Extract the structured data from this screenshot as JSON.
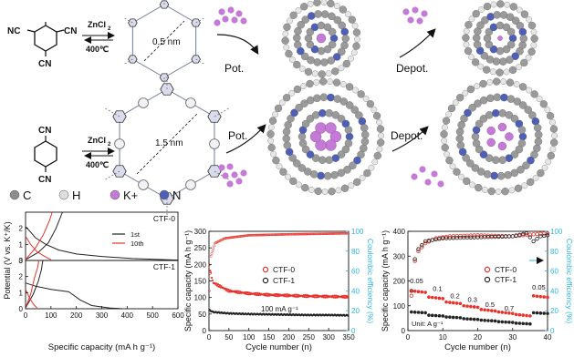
{
  "schematic": {
    "reagent": "ZnCl",
    "reagent_sub": "2",
    "temp": "400℃",
    "cn": "CN",
    "nc": "NC",
    "pore_small": "0.5 nm",
    "pore_large": "1.5 nm",
    "pot": "Pot.",
    "depot": "Depot.",
    "colors": {
      "C": "#9a9a9a",
      "H": "#e6e6e6",
      "K": "#c47bd6",
      "N": "#4d5fb8",
      "frame": "#6f7a99"
    }
  },
  "legend": {
    "items": [
      {
        "symbol": "C",
        "color": "#8c8c8c"
      },
      {
        "symbol": "H",
        "color": "#dedede"
      },
      {
        "symbol": "K+",
        "color": "#c47bd6"
      },
      {
        "symbol": "N",
        "color": "#4d5fb8"
      }
    ]
  },
  "chart_data": [
    {
      "type": "line",
      "xlabel": "Specific capacity (mA h g⁻¹)",
      "ylabel": "Potential (V vs. K⁺/K)",
      "xlim": [
        0,
        600
      ],
      "xticks": [
        "0",
        "100",
        "200",
        "300",
        "400",
        "500",
        "600"
      ],
      "yticks_top": [
        "0",
        "1",
        "2"
      ],
      "yticks_bottom": [
        "0",
        "1",
        "2",
        "3"
      ],
      "panels": [
        {
          "label": "CTF-0",
          "ylim": [
            0,
            3
          ],
          "series": [
            {
              "name": "1st",
              "color": "#222222",
              "discharge": [
                [
                  0,
                  2.1
                ],
                [
                  15,
                  1.85
                ],
                [
                  40,
                  1.4
                ],
                [
                  80,
                  1.0
                ],
                [
                  130,
                  0.65
                ],
                [
                  200,
                  0.4
                ],
                [
                  300,
                  0.25
                ],
                [
                  420,
                  0.12
                ],
                [
                  600,
                  0.02
                ]
              ],
              "charge": [
                [
                  0,
                  0.05
                ],
                [
                  50,
                  0.5
                ],
                [
                  90,
                  1.1
                ],
                [
                  120,
                  2.0
                ],
                [
                  145,
                  3.0
                ]
              ]
            },
            {
              "name": "10th",
              "color": "#e8312a",
              "discharge": [
                [
                  0,
                  1.5
                ],
                [
                  20,
                  1.0
                ],
                [
                  45,
                  0.55
                ],
                [
                  75,
                  0.25
                ],
                [
                  100,
                  0.05
                ]
              ],
              "charge": [
                [
                  0,
                  0.05
                ],
                [
                  40,
                  0.8
                ],
                [
                  70,
                  1.6
                ],
                [
                  95,
                  2.5
                ],
                [
                  105,
                  3.0
                ]
              ]
            }
          ]
        },
        {
          "label": "CTF-1",
          "ylim": [
            0,
            3
          ],
          "series": [
            {
              "name": "1st",
              "color": "#222222",
              "discharge": [
                [
                  0,
                  1.6
                ],
                [
                  40,
                  1.4
                ],
                [
                  100,
                  1.2
                ],
                [
                  170,
                  1.05
                ],
                [
                  215,
                  0.55
                ],
                [
                  260,
                  0.2
                ],
                [
                  330,
                  0.05
                ],
                [
                  380,
                  0.0
                ]
              ],
              "charge": [
                [
                  0,
                  0.05
                ],
                [
                  30,
                  0.9
                ],
                [
                  50,
                  1.7
                ],
                [
                  62,
                  2.4
                ],
                [
                  68,
                  3.0
                ]
              ]
            },
            {
              "name": "10th",
              "color": "#e8312a",
              "discharge": [
                [
                  0,
                  1.2
                ],
                [
                  15,
                  0.7
                ],
                [
                  30,
                  0.3
                ],
                [
                  45,
                  0.05
                ]
              ],
              "charge": [
                [
                  0,
                  0.05
                ],
                [
                  20,
                  0.9
                ],
                [
                  35,
                  1.9
                ],
                [
                  48,
                  2.6
                ],
                [
                  52,
                  3.0
                ]
              ]
            }
          ]
        }
      ],
      "legend": [
        "1st",
        "10th"
      ]
    },
    {
      "type": "scatter",
      "xlabel": "Cycle number (n)",
      "ylabel": "Specific capacity (mA h g⁻¹)",
      "ylabel_right": "Coulombic efficiency (%)",
      "xlim": [
        0,
        350
      ],
      "ylim": [
        0,
        300
      ],
      "ylim_right": [
        0,
        100
      ],
      "xticks": [
        "0",
        "50",
        "100",
        "150",
        "200",
        "250",
        "300",
        "350"
      ],
      "yticks": [
        "0",
        "50",
        "100",
        "150",
        "200",
        "250",
        "300"
      ],
      "yticks_right": [
        "0",
        "20",
        "40",
        "60",
        "80",
        "100"
      ],
      "series": [
        {
          "name": "CTF-0",
          "color": "#e8312a"
        },
        {
          "name": "CTF-1",
          "color": "#222222"
        }
      ],
      "annotation": "100 mA g⁻¹",
      "ctf0_capacity": [
        [
          1,
          195
        ],
        [
          10,
          145
        ],
        [
          50,
          120
        ],
        [
          100,
          112
        ],
        [
          150,
          108
        ],
        [
          200,
          106
        ],
        [
          250,
          104
        ],
        [
          300,
          103
        ],
        [
          350,
          102
        ]
      ],
      "ctf1_capacity": [
        [
          1,
          62
        ],
        [
          10,
          56
        ],
        [
          50,
          52
        ],
        [
          100,
          50
        ],
        [
          150,
          49
        ],
        [
          200,
          48
        ],
        [
          250,
          47
        ],
        [
          300,
          47
        ],
        [
          350,
          46
        ]
      ],
      "efficiency": [
        [
          1,
          40
        ],
        [
          5,
          75
        ],
        [
          15,
          88
        ],
        [
          40,
          93
        ],
        [
          100,
          96
        ],
        [
          200,
          97
        ],
        [
          350,
          98
        ]
      ]
    },
    {
      "type": "scatter",
      "xlabel": "Cycle number (n)",
      "ylabel": "Specific capacity (mA h g⁻¹)",
      "ylabel_right": "Coulombic efficiency (%)",
      "xlim": [
        0,
        40
      ],
      "ylim": [
        0,
        400
      ],
      "ylim_right": [
        0,
        100
      ],
      "xticks": [
        "0",
        "10",
        "20",
        "30",
        "40"
      ],
      "yticks": [
        "0",
        "100",
        "200",
        "300",
        "400"
      ],
      "yticks_right": [
        "0",
        "20",
        "40",
        "60",
        "80",
        "100"
      ],
      "series": [
        {
          "name": "CTF-0",
          "color": "#e8312a"
        },
        {
          "name": "CTF-1",
          "color": "#222222"
        }
      ],
      "rate_labels": [
        {
          "text": "0.05",
          "x": 2.5,
          "y": 190
        },
        {
          "text": "0.1",
          "x": 8.5,
          "y": 160
        },
        {
          "text": "0.2",
          "x": 13.5,
          "y": 130
        },
        {
          "text": "0.3",
          "x": 18.5,
          "y": 115
        },
        {
          "text": "0.5",
          "x": 23.5,
          "y": 95
        },
        {
          "text": "0.7",
          "x": 29,
          "y": 80
        },
        {
          "text": "0.05",
          "x": 37.5,
          "y": 165
        }
      ],
      "unit_label": "Unit: A g⁻¹",
      "ctf0_levels": [
        [
          1,
          5,
          160
        ],
        [
          6,
          10,
          135
        ],
        [
          11,
          15,
          115
        ],
        [
          16,
          20,
          100
        ],
        [
          21,
          25,
          85
        ],
        [
          26,
          30,
          75
        ],
        [
          31,
          35,
          65
        ],
        [
          36,
          40,
          140
        ]
      ],
      "ctf1_levels": [
        [
          1,
          5,
          75
        ],
        [
          6,
          10,
          62
        ],
        [
          11,
          15,
          55
        ],
        [
          16,
          20,
          48
        ],
        [
          21,
          25,
          42
        ],
        [
          26,
          30,
          36
        ],
        [
          31,
          35,
          30
        ],
        [
          36,
          40,
          72
        ]
      ],
      "ctf0_efficiency": [
        [
          1,
          35
        ],
        [
          2,
          70
        ],
        [
          3,
          80
        ],
        [
          5,
          88
        ],
        [
          8,
          93
        ],
        [
          12,
          95
        ],
        [
          20,
          96
        ],
        [
          30,
          95
        ],
        [
          36,
          97
        ],
        [
          40,
          98
        ]
      ],
      "ctf1_efficiency": [
        [
          1,
          40
        ],
        [
          2,
          72
        ],
        [
          3,
          82
        ],
        [
          5,
          90
        ],
        [
          10,
          93
        ],
        [
          20,
          94
        ],
        [
          30,
          95
        ],
        [
          34,
          98
        ],
        [
          36,
          90
        ],
        [
          38,
          95
        ],
        [
          40,
          96
        ]
      ]
    }
  ]
}
